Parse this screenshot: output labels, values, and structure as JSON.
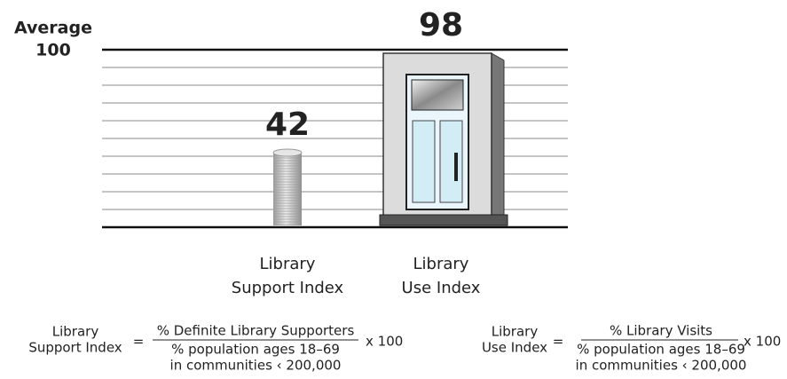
{
  "chart_data": {
    "type": "pictograph",
    "reference": {
      "label": "Average",
      "value": 100
    },
    "categories": [
      [
        "Library",
        "Support Index"
      ],
      [
        "Library",
        "Use Index"
      ]
    ],
    "values": [
      42,
      98
    ],
    "ylim": [
      0,
      100
    ],
    "gridlines": [
      0,
      10,
      20,
      30,
      40,
      50,
      60,
      70,
      80,
      90,
      100
    ],
    "formulas": [
      {
        "name": [
          "Library",
          "Support Index"
        ],
        "equals": "=",
        "numerator": "% Definite Library Supporters",
        "denominator": [
          "% population ages 18–69",
          "in communities ‹ 200,000"
        ],
        "multiplier": "x 100"
      },
      {
        "name": [
          "Library",
          "Use Index"
        ],
        "equals": "=",
        "numerator": "% Library Visits",
        "denominator": [
          "% population ages 18–69",
          "in communities ‹ 200,000"
        ],
        "multiplier": "x 100"
      }
    ]
  }
}
